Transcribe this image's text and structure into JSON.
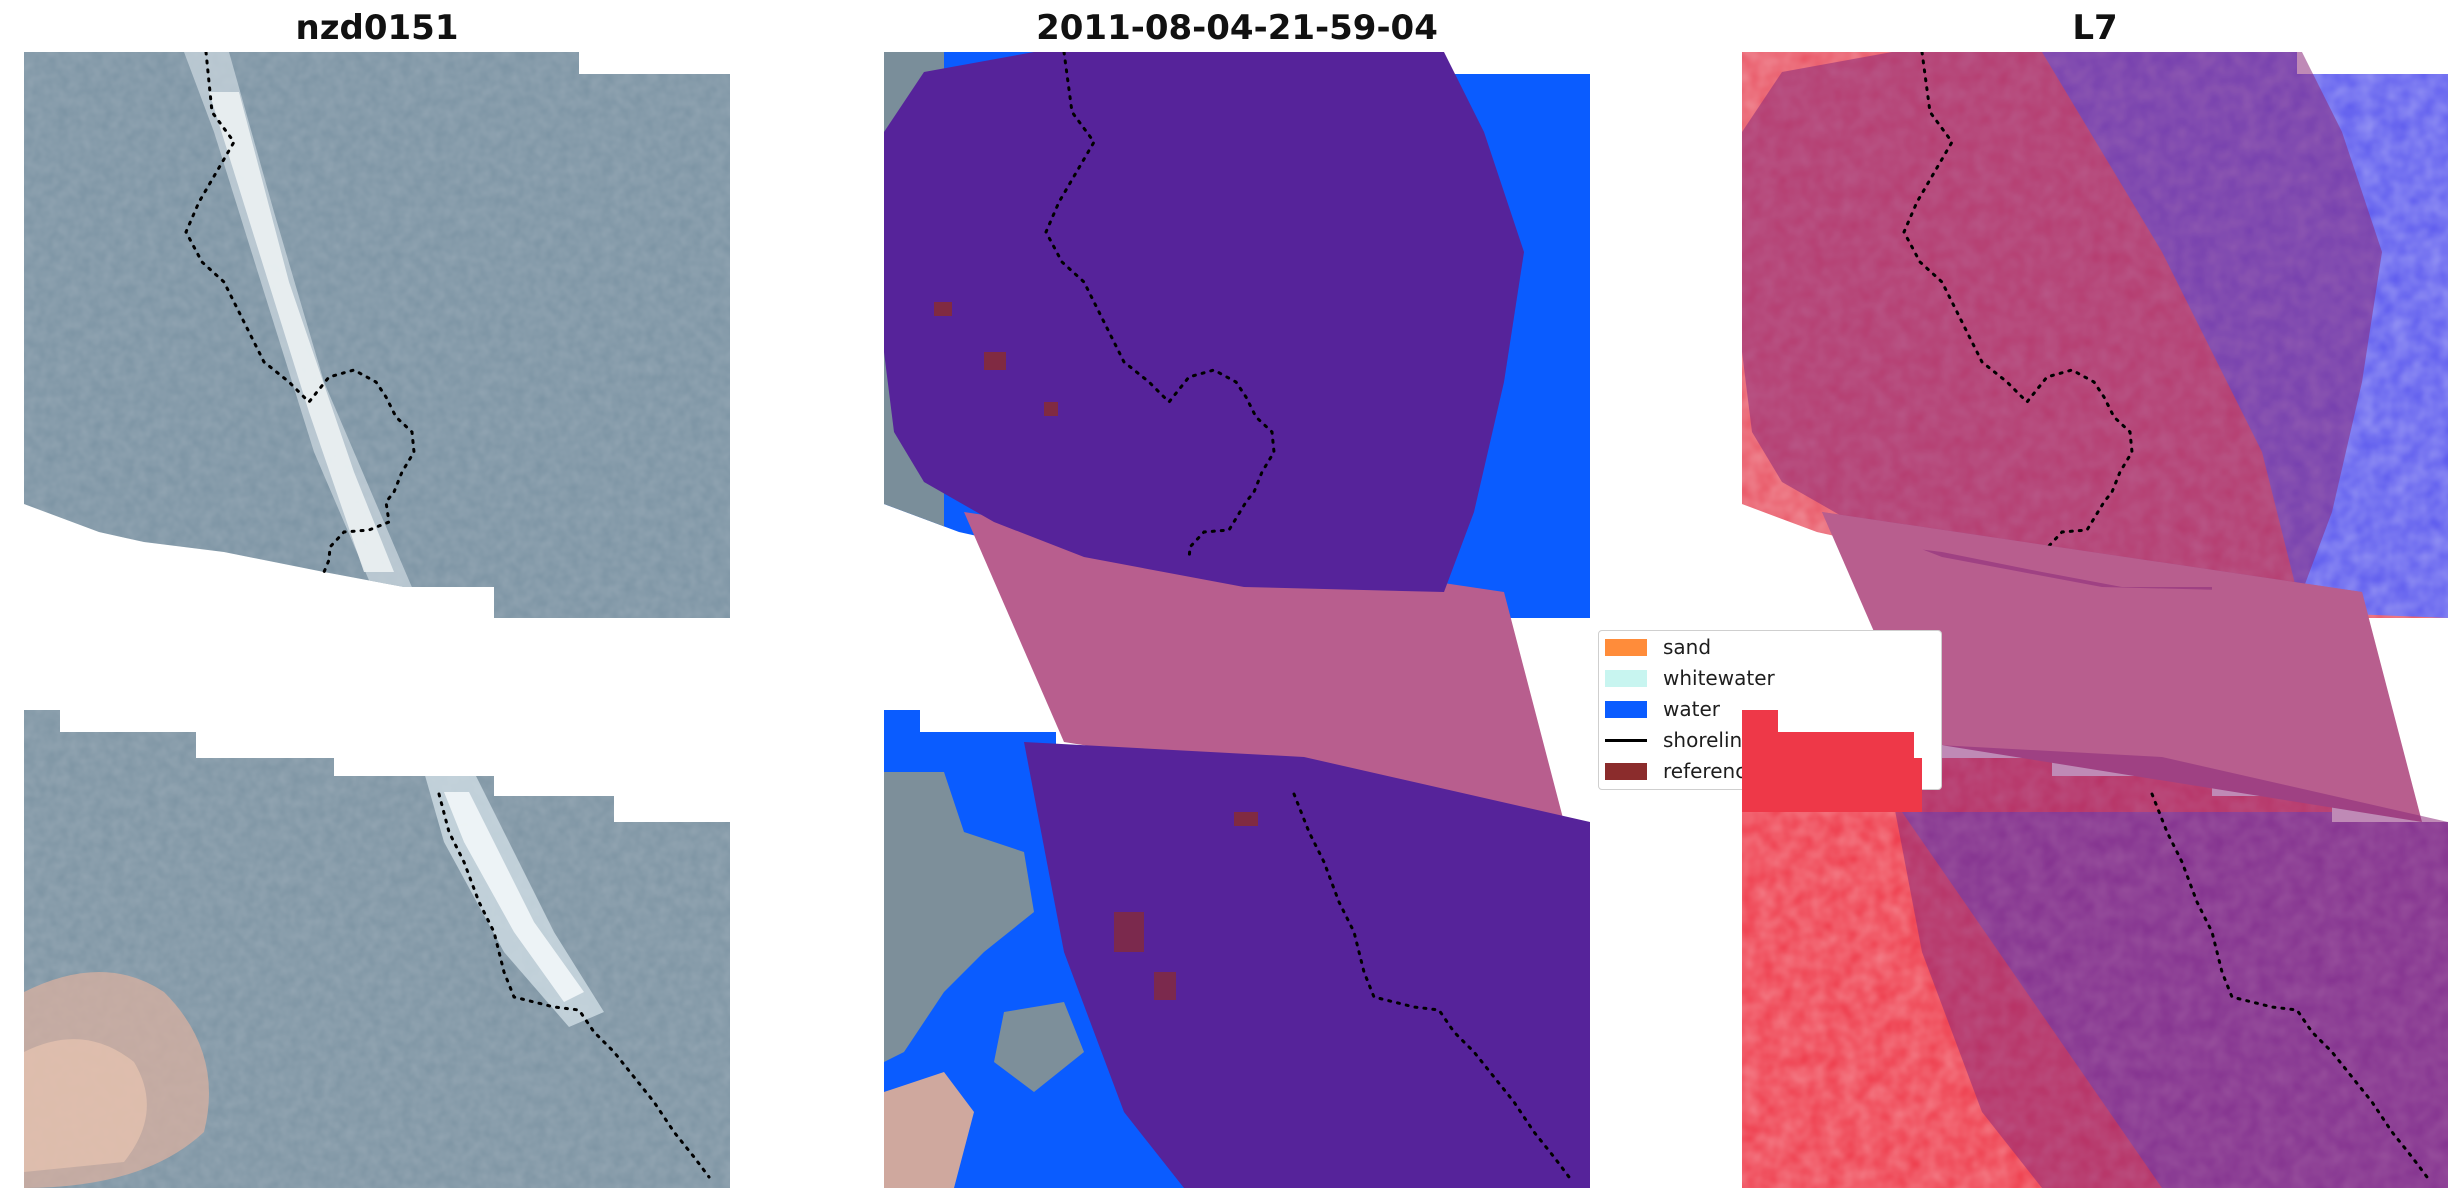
{
  "panels": [
    {
      "title": "nzd0151"
    },
    {
      "title": "2011-08-04-21-59-04"
    },
    {
      "title": "L7"
    }
  ],
  "legend": {
    "items": [
      {
        "label": "sand",
        "color": "#ff8c3a",
        "kind": "patch"
      },
      {
        "label": "whitewater",
        "color": "#c8f5f0",
        "kind": "patch"
      },
      {
        "label": "water",
        "color": "#0a5cff",
        "kind": "patch"
      },
      {
        "label": "shoreline",
        "color": "#000000",
        "kind": "line"
      },
      {
        "label": "reference",
        "color": "#8b2c2c",
        "kind": "patch"
      }
    ]
  },
  "colors": {
    "rgb_base": "#7d95a4",
    "cloud_white": "#e8eef0",
    "classified_purple": "#56239a",
    "buffer_pink": "#b85e8e",
    "water_blue": "#0a5cff",
    "index_red": "#e8203a",
    "index_blue": "#2a28ee",
    "index_purple": "#7a3a9a"
  }
}
